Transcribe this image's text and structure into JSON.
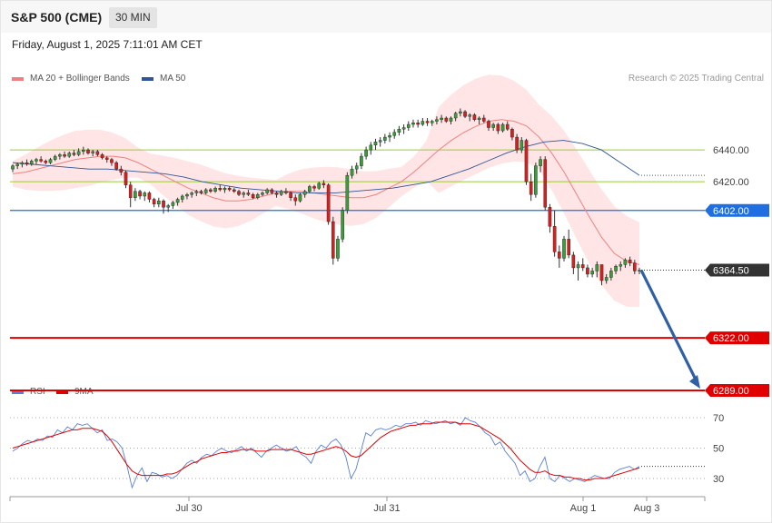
{
  "header": {
    "title": "S&P 500 (CME)",
    "interval": "30 MIN",
    "datetime": "Friday, August 1, 2025 7:11:01 AM CET"
  },
  "legend": {
    "ma20": {
      "label": "MA 20 + Bollinger Bands",
      "color": "#f08080"
    },
    "ma50": {
      "label": "MA 50",
      "color": "#2f5597"
    }
  },
  "credit": "Research © 2025 Trading Central",
  "rsi_legend": {
    "rsi": {
      "label": "RSI",
      "color": "#5b7fd6"
    },
    "ma9": {
      "label": "9MA",
      "color": "#e00000"
    }
  },
  "x_labels": [
    "Jul 30",
    "Jul 31",
    "Aug 1",
    "Aug 3"
  ],
  "chart_data": [
    {
      "type": "candlestick",
      "ylim": [
        6277,
        6480
      ],
      "levels": [
        {
          "value": 6440.0,
          "label": "6440.00",
          "kind": "resistance_minor",
          "color": "#9acd32"
        },
        {
          "value": 6420.0,
          "label": "6420.00",
          "kind": "resistance_minor",
          "color": "#9acd32"
        },
        {
          "value": 6402.0,
          "label": "6402.00",
          "kind": "pivot",
          "color": "#1f6fe0"
        },
        {
          "value": 6364.5,
          "label": "6364.50",
          "kind": "last_price",
          "color": "#333333"
        },
        {
          "value": 6322.0,
          "label": "6322.00",
          "kind": "support",
          "color": "#e00000"
        },
        {
          "value": 6289.0,
          "label": "6289.00",
          "kind": "support",
          "color": "#e00000"
        }
      ],
      "forecast_arrow": {
        "from": 6364.5,
        "to": 6289.0,
        "color": "#2f5fa7"
      },
      "series": [
        {
          "name": "MA 20 + Bollinger Bands",
          "values": [
            6425,
            6426,
            6428,
            6430,
            6432,
            6434,
            6435,
            6436,
            6436,
            6435,
            6432,
            6428,
            6424,
            6420,
            6416,
            6413,
            6410,
            6408,
            6408,
            6409,
            6411,
            6413,
            6414,
            6414,
            6413,
            6412,
            6411,
            6410,
            6410,
            6412,
            6416,
            6420,
            6426,
            6433,
            6440,
            6446,
            6451,
            6455,
            6458,
            6459,
            6458,
            6455,
            6448,
            6438,
            6426,
            6412,
            6398,
            6385,
            6375,
            6370,
            6368
          ]
        },
        {
          "name": "MA 50",
          "values": [
            6432,
            6431,
            6430,
            6429,
            6428,
            6428,
            6427,
            6426,
            6425,
            6423,
            6420,
            6418,
            6416,
            6415,
            6414,
            6413,
            6413,
            6413,
            6414,
            6415,
            6416,
            6418,
            6420,
            6424,
            6428,
            6433,
            6438,
            6442,
            6445,
            6446,
            6444,
            6440,
            6432,
            6424
          ]
        }
      ],
      "candles": [
        [
          6428,
          6431,
          6426,
          6430
        ],
        [
          6430,
          6432,
          6428,
          6431
        ],
        [
          6431,
          6433,
          6429,
          6432
        ],
        [
          6432,
          6434,
          6430,
          6431
        ],
        [
          6431,
          6434,
          6430,
          6433
        ],
        [
          6433,
          6435,
          6431,
          6434
        ],
        [
          6434,
          6436,
          6432,
          6433
        ],
        [
          6433,
          6434,
          6431,
          6432
        ],
        [
          6432,
          6435,
          6431,
          6434
        ],
        [
          6434,
          6437,
          6433,
          6436
        ],
        [
          6436,
          6438,
          6434,
          6437
        ],
        [
          6437,
          6439,
          6435,
          6436
        ],
        [
          6436,
          6439,
          6435,
          6438
        ],
        [
          6438,
          6440,
          6436,
          6437
        ],
        [
          6437,
          6441,
          6436,
          6439
        ],
        [
          6439,
          6442,
          6437,
          6440
        ],
        [
          6440,
          6441,
          6437,
          6438
        ],
        [
          6438,
          6440,
          6436,
          6439
        ],
        [
          6439,
          6440,
          6436,
          6437
        ],
        [
          6437,
          6438,
          6434,
          6435
        ],
        [
          6435,
          6436,
          6432,
          6434
        ],
        [
          6434,
          6435,
          6430,
          6432
        ],
        [
          6432,
          6433,
          6427,
          6428
        ],
        [
          6428,
          6430,
          6424,
          6426
        ],
        [
          6426,
          6427,
          6416,
          6418
        ],
        [
          6418,
          6420,
          6404,
          6410
        ],
        [
          6410,
          6416,
          6408,
          6414
        ],
        [
          6414,
          6415,
          6409,
          6411
        ],
        [
          6411,
          6414,
          6408,
          6413
        ],
        [
          6413,
          6414,
          6407,
          6409
        ],
        [
          6409,
          6410,
          6404,
          6406
        ],
        [
          6406,
          6410,
          6404,
          6408
        ],
        [
          6408,
          6409,
          6400,
          6404
        ],
        [
          6404,
          6406,
          6401,
          6405
        ],
        [
          6405,
          6408,
          6403,
          6407
        ],
        [
          6407,
          6410,
          6405,
          6409
        ],
        [
          6409,
          6412,
          6407,
          6411
        ],
        [
          6411,
          6413,
          6409,
          6412
        ],
        [
          6412,
          6414,
          6410,
          6413
        ],
        [
          6413,
          6415,
          6411,
          6414
        ],
        [
          6414,
          6415,
          6412,
          6413
        ],
        [
          6413,
          6416,
          6412,
          6415
        ],
        [
          6415,
          6416,
          6413,
          6414
        ],
        [
          6414,
          6417,
          6413,
          6416
        ],
        [
          6416,
          6418,
          6414,
          6415
        ],
        [
          6415,
          6417,
          6413,
          6416
        ],
        [
          6416,
          6417,
          6414,
          6415
        ],
        [
          6415,
          6416,
          6413,
          6414
        ],
        [
          6414,
          6415,
          6411,
          6412
        ],
        [
          6412,
          6414,
          6410,
          6413
        ],
        [
          6413,
          6415,
          6411,
          6412
        ],
        [
          6412,
          6413,
          6409,
          6410
        ],
        [
          6410,
          6413,
          6409,
          6412
        ],
        [
          6412,
          6414,
          6411,
          6413
        ],
        [
          6413,
          6416,
          6412,
          6415
        ],
        [
          6415,
          6416,
          6412,
          6413
        ],
        [
          6413,
          6414,
          6410,
          6412
        ],
        [
          6412,
          6415,
          6411,
          6414
        ],
        [
          6414,
          6416,
          6412,
          6413
        ],
        [
          6413,
          6414,
          6408,
          6410
        ],
        [
          6410,
          6412,
          6405,
          6408
        ],
        [
          6408,
          6413,
          6407,
          6412
        ],
        [
          6412,
          6415,
          6410,
          6414
        ],
        [
          6414,
          6418,
          6413,
          6417
        ],
        [
          6417,
          6418,
          6414,
          6416
        ],
        [
          6416,
          6420,
          6415,
          6419
        ],
        [
          6419,
          6421,
          6416,
          6418
        ],
        [
          6418,
          6419,
          6393,
          6395
        ],
        [
          6395,
          6398,
          6368,
          6372
        ],
        [
          6372,
          6386,
          6370,
          6384
        ],
        [
          6384,
          6404,
          6382,
          6402
        ],
        [
          6402,
          6426,
          6400,
          6424
        ],
        [
          6424,
          6430,
          6422,
          6428
        ],
        [
          6428,
          6432,
          6425,
          6430
        ],
        [
          6430,
          6438,
          6428,
          6436
        ],
        [
          6436,
          6442,
          6434,
          6440
        ],
        [
          6440,
          6445,
          6437,
          6443
        ],
        [
          6443,
          6447,
          6440,
          6445
        ],
        [
          6445,
          6448,
          6442,
          6446
        ],
        [
          6446,
          6450,
          6444,
          6448
        ],
        [
          6448,
          6451,
          6445,
          6449
        ],
        [
          6449,
          6453,
          6447,
          6451
        ],
        [
          6451,
          6455,
          6449,
          6453
        ],
        [
          6453,
          6456,
          6450,
          6454
        ],
        [
          6454,
          6458,
          6452,
          6456
        ],
        [
          6456,
          6459,
          6454,
          6457
        ],
        [
          6457,
          6459,
          6454,
          6456
        ],
        [
          6456,
          6460,
          6455,
          6458
        ],
        [
          6458,
          6460,
          6455,
          6457
        ],
        [
          6457,
          6459,
          6455,
          6458
        ],
        [
          6458,
          6461,
          6456,
          6459
        ],
        [
          6459,
          6462,
          6457,
          6460
        ],
        [
          6460,
          6461,
          6457,
          6458
        ],
        [
          6458,
          6461,
          6456,
          6460
        ],
        [
          6460,
          6464,
          6458,
          6463
        ],
        [
          6463,
          6466,
          6461,
          6464
        ],
        [
          6464,
          6465,
          6460,
          6461
        ],
        [
          6461,
          6463,
          6458,
          6462
        ],
        [
          6462,
          6463,
          6458,
          6459
        ],
        [
          6459,
          6461,
          6456,
          6460
        ],
        [
          6460,
          6462,
          6457,
          6458
        ],
        [
          6458,
          6459,
          6452,
          6454
        ],
        [
          6454,
          6457,
          6452,
          6456
        ],
        [
          6456,
          6457,
          6450,
          6452
        ],
        [
          6452,
          6457,
          6451,
          6456
        ],
        [
          6456,
          6458,
          6452,
          6453
        ],
        [
          6453,
          6454,
          6446,
          6448
        ],
        [
          6448,
          6450,
          6438,
          6440
        ],
        [
          6440,
          6448,
          6438,
          6446
        ],
        [
          6446,
          6447,
          6418,
          6420
        ],
        [
          6420,
          6425,
          6408,
          6412
        ],
        [
          6412,
          6432,
          6410,
          6430
        ],
        [
          6430,
          6436,
          6426,
          6434
        ],
        [
          6434,
          6436,
          6402,
          6404
        ],
        [
          6404,
          6406,
          6388,
          6392
        ],
        [
          6392,
          6402,
          6373,
          6376
        ],
        [
          6376,
          6380,
          6366,
          6372
        ],
        [
          6372,
          6386,
          6370,
          6384
        ],
        [
          6384,
          6390,
          6372,
          6374
        ],
        [
          6374,
          6376,
          6362,
          6366
        ],
        [
          6366,
          6370,
          6358,
          6368
        ],
        [
          6368,
          6372,
          6364,
          6366
        ],
        [
          6366,
          6368,
          6360,
          6362
        ],
        [
          6362,
          6366,
          6360,
          6364
        ],
        [
          6364,
          6370,
          6360,
          6368
        ],
        [
          6368,
          6368,
          6355,
          6358
        ],
        [
          6358,
          6362,
          6356,
          6360
        ],
        [
          6360,
          6366,
          6358,
          6364
        ],
        [
          6364,
          6368,
          6362,
          6367
        ],
        [
          6367,
          6370,
          6364,
          6368
        ],
        [
          6368,
          6372,
          6366,
          6371
        ],
        [
          6371,
          6373,
          6367,
          6369
        ],
        [
          6369,
          6371,
          6362,
          6364
        ],
        [
          6364,
          6366,
          6362,
          6364.5
        ]
      ]
    },
    {
      "type": "line",
      "ylim": [
        18,
        82
      ],
      "yticks": [
        30,
        50,
        70
      ],
      "series": [
        {
          "name": "RSI",
          "color": "#5b7fd6",
          "values": [
            48,
            50,
            53,
            55,
            54,
            56,
            55,
            58,
            57,
            62,
            60,
            64,
            62,
            66,
            65,
            66,
            63,
            60,
            62,
            55,
            56,
            54,
            50,
            38,
            24,
            32,
            37,
            28,
            34,
            33,
            31,
            32,
            30,
            32,
            36,
            40,
            42,
            40,
            44,
            46,
            45,
            48,
            50,
            48,
            47,
            49,
            51,
            48,
            50,
            47,
            44,
            48,
            50,
            52,
            50,
            48,
            49,
            51,
            46,
            44,
            40,
            48,
            52,
            50,
            54,
            56,
            52,
            44,
            30,
            36,
            48,
            60,
            58,
            62,
            63,
            62,
            63,
            65,
            64,
            66,
            66,
            67,
            65,
            68,
            67,
            66,
            67,
            68,
            66,
            67,
            65,
            70,
            68,
            67,
            64,
            60,
            58,
            52,
            54,
            48,
            44,
            40,
            32,
            35,
            28,
            30,
            38,
            44,
            30,
            28,
            32,
            30,
            28,
            30,
            29,
            28,
            30,
            32,
            31,
            30,
            30,
            34,
            36,
            37,
            38,
            36,
            38
          ]
        },
        {
          "name": "9MA",
          "color": "#e00000",
          "values": [
            50,
            51,
            52,
            53,
            54,
            55,
            56,
            57,
            58,
            59,
            60,
            61,
            62,
            62,
            63,
            63,
            63,
            62,
            61,
            58,
            54,
            49,
            44,
            39,
            35,
            33,
            32,
            32,
            32,
            32,
            32,
            33,
            33,
            34,
            36,
            38,
            40,
            41,
            43,
            44,
            45,
            46,
            47,
            47,
            48,
            48,
            49,
            49,
            49,
            48,
            48,
            48,
            49,
            49,
            49,
            49,
            49,
            48,
            47,
            46,
            46,
            47,
            48,
            49,
            50,
            51,
            50,
            48,
            45,
            44,
            45,
            48,
            51,
            54,
            57,
            59,
            61,
            62,
            63,
            64,
            65,
            65,
            66,
            66,
            66,
            67,
            67,
            67,
            67,
            67,
            66,
            66,
            66,
            65,
            64,
            62,
            60,
            58,
            56,
            53,
            50,
            46,
            42,
            39,
            36,
            34,
            34,
            35,
            33,
            32,
            32,
            31,
            31,
            30,
            30,
            29,
            29,
            30,
            30,
            30,
            31,
            32,
            33,
            34,
            35,
            36,
            37
          ]
        }
      ]
    }
  ]
}
